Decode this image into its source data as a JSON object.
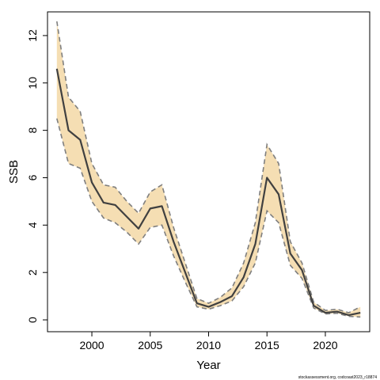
{
  "chart_data": {
    "type": "line",
    "xlabel": "Year",
    "ylabel": "SSB",
    "xlim": [
      1996.2,
      2023.8
    ],
    "ylim": [
      -0.5,
      13.0
    ],
    "xticks": [
      "2000",
      "2005",
      "2010",
      "2015",
      "2020"
    ],
    "yticks": [
      "0",
      "2",
      "4",
      "6",
      "8",
      "10",
      "12"
    ],
    "grid": false,
    "x": [
      1997,
      1998,
      1999,
      2000,
      2001,
      2002,
      2003,
      2004,
      2005,
      2006,
      2007,
      2008,
      2009,
      2010,
      2011,
      2012,
      2013,
      2014,
      2015,
      2016,
      2017,
      2018,
      2019,
      2020,
      2021,
      2022,
      2023
    ],
    "series": [
      {
        "role": "estimate",
        "values": [
          10.6,
          8.0,
          7.6,
          5.8,
          4.95,
          4.85,
          4.35,
          3.85,
          4.7,
          4.8,
          3.3,
          2.0,
          0.7,
          0.55,
          0.75,
          1.0,
          1.8,
          3.2,
          6.0,
          5.3,
          2.8,
          2.1,
          0.6,
          0.3,
          0.35,
          0.2,
          0.3
        ]
      },
      {
        "role": "upper",
        "values": [
          12.6,
          9.4,
          8.8,
          6.6,
          5.7,
          5.6,
          5.0,
          4.5,
          5.4,
          5.7,
          3.9,
          2.4,
          0.9,
          0.7,
          0.95,
          1.35,
          2.4,
          4.1,
          7.4,
          6.6,
          3.3,
          2.4,
          0.75,
          0.4,
          0.45,
          0.3,
          0.55
        ]
      },
      {
        "role": "lower",
        "values": [
          8.5,
          6.6,
          6.4,
          5.0,
          4.3,
          4.1,
          3.7,
          3.2,
          3.9,
          4.0,
          2.7,
          1.6,
          0.55,
          0.45,
          0.6,
          0.8,
          1.4,
          2.4,
          4.6,
          4.1,
          2.3,
          1.75,
          0.5,
          0.25,
          0.28,
          0.15,
          0.12
        ]
      }
    ],
    "colors": {
      "ribbon": "#f5deb3",
      "estimate_line": "#404040",
      "bound_line": "#7f7f7f"
    },
    "footnote": "stockassessment.org, codcoast2023_r18874"
  }
}
